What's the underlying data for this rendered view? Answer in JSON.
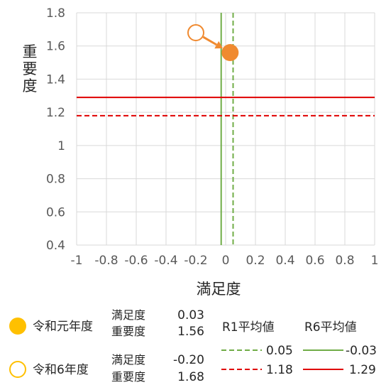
{
  "chart_data": {
    "type": "scatter",
    "xlabel": "満足度",
    "ylabel": "重要度",
    "xlim": [
      -1,
      1
    ],
    "ylim": [
      0.4,
      1.8
    ],
    "x_ticks": [
      "-1",
      "-0.8",
      "-0.6",
      "-0.4",
      "-0.2",
      "0",
      "0.2",
      "0.4",
      "0.6",
      "0.8",
      "1"
    ],
    "y_ticks": [
      "0.4",
      "0.6",
      "0.8",
      "1",
      "1.2",
      "1.4",
      "1.6",
      "1.8"
    ],
    "grid": true,
    "points": [
      {
        "name": "令和元年度",
        "x": 0.03,
        "y": 1.56,
        "style": "filled",
        "color": "#f08a30"
      },
      {
        "name": "令和6年度",
        "x": -0.2,
        "y": 1.68,
        "style": "hollow",
        "color": "#f08a30"
      }
    ],
    "arrow": {
      "from": [
        -0.2,
        1.68
      ],
      "to": [
        0.03,
        1.56
      ],
      "color": "#f08a30"
    },
    "reference_lines": [
      {
        "group": "R1平均値",
        "axis": "x",
        "value": 0.05,
        "color": "#70ad47",
        "dash": "dashed"
      },
      {
        "group": "R6平均値",
        "axis": "x",
        "value": -0.03,
        "color": "#70ad47",
        "dash": "solid"
      },
      {
        "group": "R1平均値",
        "axis": "y",
        "value": 1.18,
        "color": "#e00000",
        "dash": "dashed"
      },
      {
        "group": "R6平均値",
        "axis": "y",
        "value": 1.29,
        "color": "#e00000",
        "dash": "solid"
      }
    ]
  },
  "legend": {
    "point1": {
      "label": "令和元年度",
      "sat_label": "満足度",
      "sat_value": "0.03",
      "imp_label": "重要度",
      "imp_value": "1.56",
      "color": "#ffc000"
    },
    "point2": {
      "label": "令和6年度",
      "sat_label": "満足度",
      "sat_value": "-0.20",
      "imp_label": "重要度",
      "imp_value": "1.68",
      "color": "#ffc000"
    },
    "avg_header_r1": "R1平均値",
    "avg_header_r6": "R6平均値",
    "r1_x": "0.05",
    "r6_x": "-0.03",
    "r1_y": "1.18",
    "r6_y": "1.29"
  }
}
